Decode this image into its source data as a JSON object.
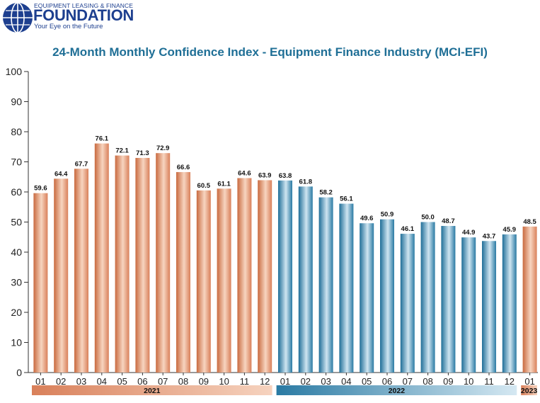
{
  "header": {
    "org_top": "EQUIPMENT LEASING & FINANCE",
    "org_name": "FOUNDATION",
    "org_tagline": "Your Eye on the Future"
  },
  "colors": {
    "orange": "#d9805a",
    "blue": "#2a7aa3",
    "title": "#1f6f96"
  },
  "chart_data": {
    "type": "bar",
    "title": "24-Month Monthly Confidence Index - Equipment Finance Industry (MCI-EFI)",
    "categories": [
      "01",
      "02",
      "03",
      "04",
      "05",
      "06",
      "07",
      "08",
      "09",
      "10",
      "11",
      "12",
      "01",
      "02",
      "03",
      "04",
      "05",
      "06",
      "07",
      "08",
      "09",
      "10",
      "11",
      "12",
      "01"
    ],
    "values": [
      59.6,
      64.4,
      67.7,
      76.1,
      72.1,
      71.3,
      72.9,
      66.6,
      60.5,
      61.1,
      64.6,
      63.9,
      63.8,
      61.8,
      58.2,
      56.1,
      49.6,
      50.9,
      46.1,
      50.0,
      48.7,
      44.9,
      43.7,
      45.9,
      48.5
    ],
    "year_groups": [
      {
        "label": "2021",
        "count": 12,
        "color": "orange"
      },
      {
        "label": "2022",
        "count": 12,
        "color": "blue"
      },
      {
        "label": "2023",
        "count": 1,
        "color": "orange"
      }
    ],
    "ylim": [
      0,
      100
    ],
    "yticks": [
      0,
      10,
      20,
      30,
      40,
      50,
      60,
      70,
      80,
      90,
      100
    ],
    "grid": false,
    "legend": "none"
  }
}
